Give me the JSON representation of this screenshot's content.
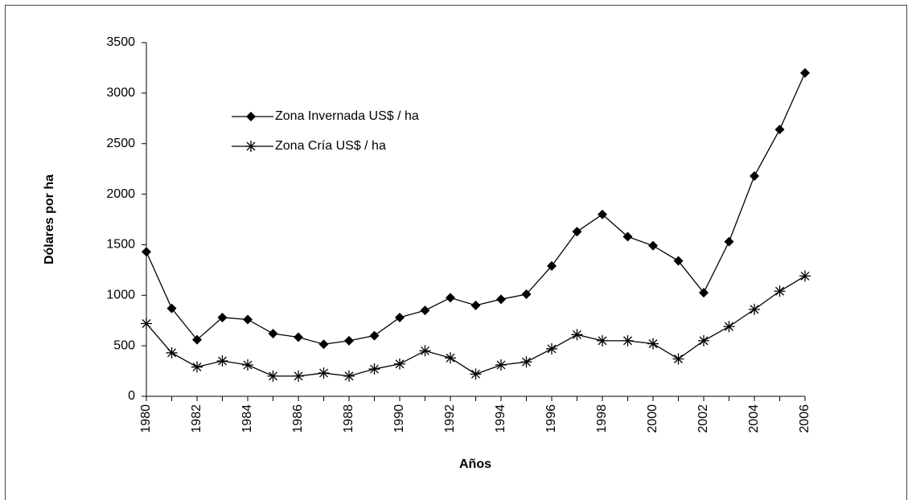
{
  "chart_data": {
    "type": "line",
    "x_label": "Años",
    "y_label": "Dólares por ha",
    "x": [
      1980,
      1981,
      1982,
      1983,
      1984,
      1985,
      1986,
      1987,
      1988,
      1989,
      1990,
      1991,
      1992,
      1993,
      1994,
      1995,
      1996,
      1997,
      1998,
      1999,
      2000,
      2001,
      2002,
      2003,
      2004,
      2005,
      2006
    ],
    "series": [
      {
        "name": "Zona Invernada US$ / ha",
        "color": "#000000",
        "marker": "diamond",
        "values": [
          1430,
          870,
          560,
          780,
          760,
          620,
          585,
          515,
          550,
          600,
          780,
          850,
          975,
          900,
          960,
          1010,
          1290,
          1630,
          1800,
          1580,
          1490,
          1340,
          1025,
          1530,
          2180,
          2640,
          3200
        ]
      },
      {
        "name": "Zona Cría US$ / ha",
        "color": "#000000",
        "marker": "asterisk",
        "values": [
          720,
          430,
          290,
          350,
          310,
          200,
          200,
          230,
          200,
          270,
          320,
          450,
          380,
          220,
          310,
          340,
          470,
          610,
          550,
          550,
          520,
          370,
          550,
          690,
          860,
          1040,
          1190
        ]
      }
    ],
    "xlim": [
      1980,
      2006
    ],
    "xticks": [
      1980,
      1982,
      1984,
      1986,
      1988,
      1990,
      1992,
      1994,
      1996,
      1998,
      2000,
      2002,
      2004,
      2006
    ],
    "ylim": [
      0,
      3500
    ],
    "yticks": [
      0,
      500,
      1000,
      1500,
      2000,
      2500,
      3000,
      3500
    ],
    "grid": false,
    "legend": "upper left"
  }
}
